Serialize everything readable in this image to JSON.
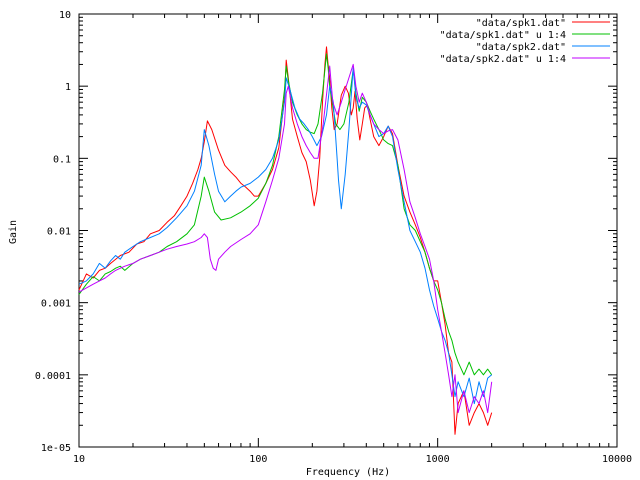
{
  "chart_data": {
    "type": "line",
    "title": "",
    "xlabel": "Frequency (Hz)",
    "ylabel": "Gain",
    "xscale": "log",
    "yscale": "log",
    "xlim": [
      10,
      10000
    ],
    "ylim": [
      1e-05,
      10
    ],
    "x_tick_labels": [
      {
        "value": 10,
        "label": "10"
      },
      {
        "value": 100,
        "label": "100"
      },
      {
        "value": 1000,
        "label": "1000"
      },
      {
        "value": 10000,
        "label": "10000"
      }
    ],
    "y_tick_labels": [
      {
        "value": 10,
        "label": "10"
      },
      {
        "value": 1,
        "label": "1"
      },
      {
        "value": 0.1,
        "label": "0.1"
      },
      {
        "value": 0.01,
        "label": "0.01"
      },
      {
        "value": 0.001,
        "label": "0.001"
      },
      {
        "value": 0.0001,
        "label": "0.0001"
      },
      {
        "value": 1e-05,
        "label": "1e-05"
      }
    ],
    "grid": false,
    "legend_position": "top-right",
    "series": [
      {
        "name": "\"data/spk1.dat\"",
        "color": "#ff0000",
        "x": [
          10,
          11,
          12,
          13,
          14,
          15,
          17,
          19,
          21,
          23,
          25,
          28,
          31,
          34,
          37,
          40,
          43,
          46,
          48,
          50,
          52,
          55,
          60,
          65,
          70,
          75,
          80,
          85,
          90,
          95,
          100,
          110,
          120,
          130,
          140,
          143,
          147,
          155,
          165,
          175,
          185,
          195,
          205,
          212,
          220,
          228,
          235,
          240,
          245,
          250,
          257,
          265,
          275,
          290,
          305,
          318,
          330,
          338,
          346,
          356,
          368,
          380,
          392,
          405,
          420,
          440,
          470,
          500,
          530,
          560,
          600,
          650,
          700,
          750,
          800,
          850,
          900,
          950,
          1000,
          1050,
          1100,
          1150,
          1200,
          1250,
          1300,
          1400,
          1500,
          1600,
          1700,
          1800,
          1900,
          2000
        ],
        "values": [
          0.0015,
          0.0025,
          0.0022,
          0.0028,
          0.003,
          0.0035,
          0.0045,
          0.005,
          0.0065,
          0.007,
          0.009,
          0.01,
          0.013,
          0.016,
          0.022,
          0.03,
          0.045,
          0.07,
          0.1,
          0.17,
          0.33,
          0.25,
          0.13,
          0.08,
          0.065,
          0.055,
          0.045,
          0.04,
          0.035,
          0.03,
          0.03,
          0.045,
          0.07,
          0.14,
          0.7,
          2.3,
          1.3,
          0.35,
          0.2,
          0.12,
          0.09,
          0.05,
          0.022,
          0.035,
          0.1,
          0.6,
          2.0,
          3.5,
          2.0,
          1.3,
          0.5,
          0.25,
          0.3,
          0.75,
          1.0,
          0.8,
          0.4,
          0.5,
          0.85,
          0.35,
          0.18,
          0.3,
          0.5,
          0.55,
          0.35,
          0.2,
          0.15,
          0.2,
          0.28,
          0.22,
          0.08,
          0.03,
          0.018,
          0.012,
          0.008,
          0.005,
          0.003,
          0.002,
          0.002,
          0.001,
          0.0005,
          0.0002,
          0.00015,
          1.5e-05,
          4e-05,
          6e-05,
          2e-05,
          3e-05,
          4e-05,
          3e-05,
          2e-05,
          3e-05
        ]
      },
      {
        "name": "\"data/spk1.dat\" u 1:4",
        "color": "#00c000",
        "x": [
          10,
          11,
          12,
          13,
          14,
          15,
          16,
          17,
          18,
          20,
          22,
          25,
          28,
          31,
          35,
          40,
          44,
          48,
          50,
          53,
          57,
          62,
          70,
          80,
          90,
          100,
          110,
          120,
          130,
          140,
          143,
          147,
          155,
          165,
          175,
          185,
          195,
          205,
          215,
          228,
          240,
          245,
          250,
          258,
          270,
          285,
          300,
          320,
          338,
          350,
          365,
          380,
          400,
          420,
          440,
          470,
          500,
          530,
          560,
          600,
          650,
          700,
          750,
          800,
          850,
          900,
          950,
          1000,
          1050,
          1100,
          1150,
          1200,
          1250,
          1300,
          1400,
          1500,
          1600,
          1700,
          1800,
          1900,
          2000
        ],
        "values": [
          0.0013,
          0.0018,
          0.0023,
          0.002,
          0.0025,
          0.0027,
          0.003,
          0.0032,
          0.0028,
          0.0035,
          0.004,
          0.0045,
          0.005,
          0.006,
          0.007,
          0.009,
          0.012,
          0.03,
          0.055,
          0.035,
          0.018,
          0.014,
          0.015,
          0.018,
          0.022,
          0.028,
          0.045,
          0.08,
          0.2,
          0.9,
          1.9,
          1.2,
          0.6,
          0.4,
          0.3,
          0.25,
          0.23,
          0.22,
          0.3,
          0.8,
          2.8,
          1.8,
          1.0,
          0.6,
          0.3,
          0.25,
          0.3,
          0.6,
          1.7,
          0.8,
          0.45,
          0.7,
          0.6,
          0.45,
          0.35,
          0.25,
          0.18,
          0.16,
          0.15,
          0.08,
          0.02,
          0.012,
          0.01,
          0.007,
          0.005,
          0.003,
          0.002,
          0.0015,
          0.001,
          0.0006,
          0.0004,
          0.0003,
          0.0002,
          0.00015,
          0.0001,
          0.00015,
          0.0001,
          0.00012,
          0.0001,
          0.00012,
          0.0001
        ]
      },
      {
        "name": "\"data/spk2.dat\"",
        "color": "#0080ff",
        "x": [
          10,
          11,
          12,
          13,
          14,
          15,
          16,
          17,
          18,
          20,
          22,
          25,
          28,
          31,
          35,
          40,
          44,
          48,
          50,
          53,
          57,
          60,
          65,
          70,
          75,
          80,
          90,
          100,
          110,
          120,
          130,
          140,
          143,
          150,
          160,
          170,
          180,
          190,
          200,
          212,
          225,
          240,
          250,
          262,
          275,
          280,
          290,
          305,
          320,
          338,
          350,
          365,
          380,
          400,
          420,
          440,
          470,
          500,
          530,
          560,
          600,
          650,
          700,
          750,
          800,
          850,
          900,
          950,
          1000,
          1050,
          1100,
          1150,
          1200,
          1250,
          1300,
          1400,
          1500,
          1600,
          1700,
          1800,
          1900,
          2000
        ],
        "values": [
          0.0018,
          0.002,
          0.0025,
          0.0035,
          0.003,
          0.0038,
          0.0045,
          0.004,
          0.005,
          0.006,
          0.007,
          0.008,
          0.009,
          0.011,
          0.015,
          0.022,
          0.035,
          0.08,
          0.25,
          0.15,
          0.06,
          0.035,
          0.025,
          0.03,
          0.035,
          0.04,
          0.045,
          0.055,
          0.07,
          0.1,
          0.18,
          0.6,
          1.3,
          0.9,
          0.5,
          0.35,
          0.3,
          0.25,
          0.2,
          0.15,
          0.2,
          0.4,
          1.0,
          0.6,
          0.1,
          0.05,
          0.02,
          0.06,
          0.25,
          1.8,
          0.7,
          0.5,
          0.6,
          0.55,
          0.4,
          0.3,
          0.2,
          0.22,
          0.28,
          0.2,
          0.07,
          0.025,
          0.01,
          0.007,
          0.005,
          0.003,
          0.0015,
          0.0009,
          0.0006,
          0.0004,
          0.0003,
          0.0002,
          0.0001,
          5e-05,
          8e-05,
          5e-05,
          9e-05,
          4e-05,
          8e-05,
          5e-05,
          9e-05,
          0.0001
        ]
      },
      {
        "name": "\"data/spk2.dat\" u 1:4",
        "color": "#c000ff",
        "x": [
          10,
          11,
          12,
          13,
          14,
          15,
          16,
          17,
          18,
          20,
          22,
          25,
          28,
          31,
          35,
          40,
          44,
          48,
          50,
          52,
          54,
          56,
          58,
          60,
          65,
          70,
          80,
          90,
          100,
          110,
          120,
          130,
          140,
          143,
          147,
          155,
          165,
          175,
          185,
          195,
          205,
          215,
          230,
          245,
          250,
          260,
          275,
          290,
          305,
          320,
          338,
          350,
          365,
          380,
          400,
          420,
          440,
          470,
          500,
          530,
          560,
          600,
          650,
          700,
          750,
          800,
          850,
          900,
          950,
          1000,
          1050,
          1100,
          1150,
          1200,
          1250,
          1300,
          1400,
          1500,
          1600,
          1700,
          1800,
          1900,
          2000
        ],
        "values": [
          0.0014,
          0.0016,
          0.0018,
          0.002,
          0.0022,
          0.0025,
          0.0028,
          0.003,
          0.0032,
          0.0035,
          0.004,
          0.0045,
          0.005,
          0.0055,
          0.006,
          0.0065,
          0.007,
          0.008,
          0.009,
          0.008,
          0.004,
          0.003,
          0.0028,
          0.004,
          0.005,
          0.006,
          0.0075,
          0.009,
          0.012,
          0.025,
          0.05,
          0.1,
          0.3,
          0.8,
          1.0,
          0.5,
          0.3,
          0.2,
          0.15,
          0.12,
          0.1,
          0.1,
          0.3,
          1.2,
          1.9,
          0.6,
          0.4,
          0.6,
          0.9,
          1.3,
          2.0,
          1.0,
          0.6,
          0.8,
          0.6,
          0.4,
          0.3,
          0.25,
          0.22,
          0.24,
          0.25,
          0.18,
          0.07,
          0.025,
          0.015,
          0.009,
          0.006,
          0.004,
          0.002,
          0.0008,
          0.0004,
          0.0002,
          0.0001,
          5e-05,
          0.0001,
          3e-05,
          6e-05,
          3e-05,
          5e-05,
          4e-05,
          6e-05,
          3e-05,
          8e-05
        ]
      }
    ]
  }
}
